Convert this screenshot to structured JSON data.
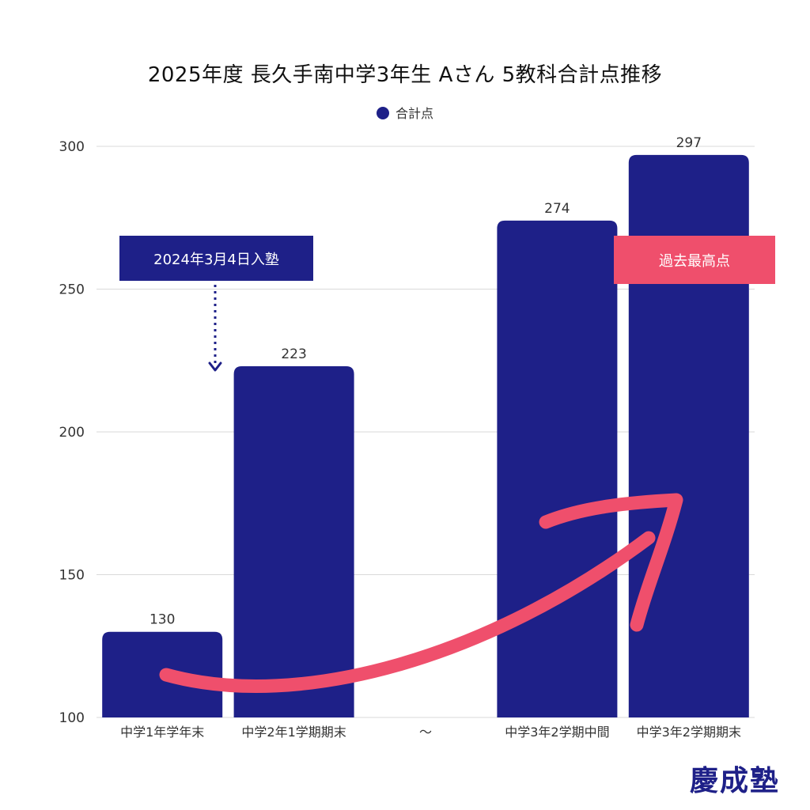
{
  "colors": {
    "bar": "#1e2088",
    "accent": "#ef4f6c",
    "grid": "#d9d9d9",
    "white": "#ffffff"
  },
  "chart_data": {
    "type": "bar",
    "title": "2025年度 長久手南中学3年生 Aさん 5教科合計点推移",
    "legend": "合計点",
    "categories": [
      "中学1年学年末",
      "中学2年1学期期末",
      "～",
      "中学3年2学期中間",
      "中学3年2学期期末"
    ],
    "values": [
      130,
      223,
      null,
      274,
      297
    ],
    "yticks": [
      100,
      150,
      200,
      250,
      300
    ],
    "ylim": [
      100,
      300
    ],
    "annotations": [
      {
        "text": "2024年3月4日入塾"
      },
      {
        "text": "過去最高点"
      }
    ]
  },
  "brand": "慶成塾"
}
